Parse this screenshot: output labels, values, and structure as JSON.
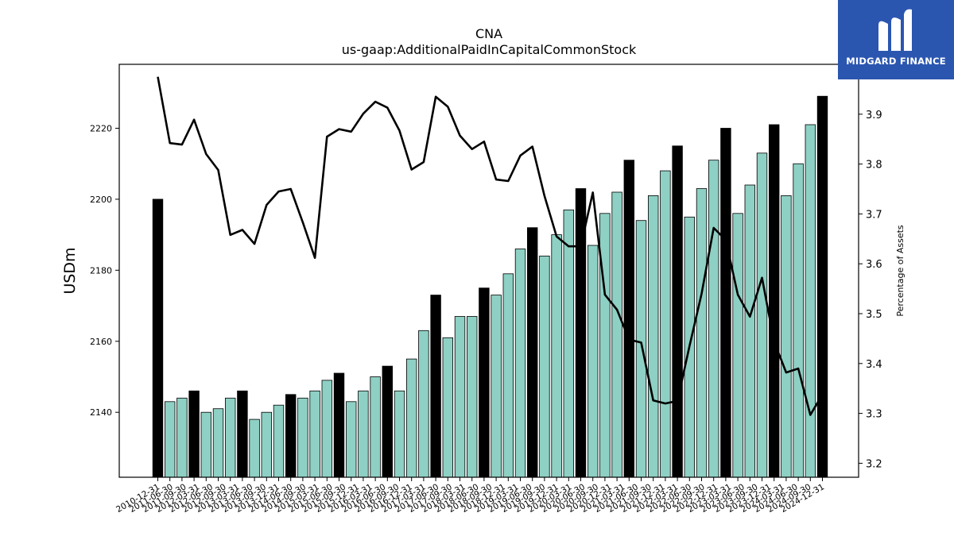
{
  "brand": {
    "name": "MIDGARD FINANCE",
    "bg_color": "#2b56b0",
    "icon": "midgard-m-logo-icon"
  },
  "chart_data": {
    "type": "bar",
    "title": "CNA",
    "subtitle": "us-gaap:AdditionalPaidInCapitalCommonStock",
    "ylabel": "USDm",
    "y2label": "Percentage of Assets",
    "ylim": [
      2121.7,
      2238
    ],
    "y2lim": [
      3.172,
      4.0
    ],
    "yticks": [
      2140,
      2160,
      2180,
      2200,
      2220
    ],
    "y2ticks": [
      3.2,
      3.3,
      3.4,
      3.5,
      3.6,
      3.7,
      3.8,
      3.9
    ],
    "bar_colors": {
      "year_end": "#000000",
      "quarter": "#8ed0c4"
    },
    "line_color": "#000000",
    "categories": [
      "2010-12-31",
      "2011-03-31",
      "2011-06-30",
      "2011-09-30",
      "2011-12-31",
      "2012-03-31",
      "2012-06-30",
      "2012-09-30",
      "2012-12-31",
      "2013-03-31",
      "2013-06-30",
      "2013-09-30",
      "2013-12-31",
      "2014-03-31",
      "2014-06-30",
      "2014-09-30",
      "2014-12-31",
      "2015-03-31",
      "2015-06-30",
      "2015-09-30",
      "2015-12-31",
      "2016-03-31",
      "2016-06-30",
      "2016-09-30",
      "2016-12-31",
      "2017-03-31",
      "2017-06-30",
      "2017-09-30",
      "2017-12-31",
      "2018-03-31",
      "2018-06-30",
      "2018-09-30",
      "2018-12-31",
      "2019-03-31",
      "2019-06-30",
      "2019-09-30",
      "2019-12-31",
      "2020-03-31",
      "2020-06-30",
      "2020-09-30",
      "2020-12-31",
      "2021-03-31",
      "2021-06-30",
      "2021-09-30",
      "2021-12-31",
      "2022-03-31",
      "2022-06-30",
      "2022-09-30",
      "2022-12-31",
      "2023-03-31",
      "2023-06-30",
      "2023-09-30",
      "2023-12-31",
      "2024-03-31",
      "2024-06-30",
      "2024-12-31"
    ],
    "tick_labels": [
      "2010-12-31",
      "2011-06-30",
      "2011-09-30",
      "2012-03-31",
      "2012-06-30",
      "2012-09-30",
      "2013-03-31",
      "2013-06-30",
      "2013-09-30",
      "2013-12-31",
      "2014-06-30",
      "2014-09-30",
      "2015-03-31",
      "2015-06-30",
      "2015-09-30",
      "2015-12-31",
      "2016-03-31",
      "2016-06-30",
      "2016-09-30",
      "2016-12-31",
      "2017-03-31",
      "2017-06-30",
      "2017-09-30",
      "2018-03-31",
      "2018-06-30",
      "2018-09-30",
      "2018-12-31",
      "2019-03-31",
      "2019-06-30",
      "2019-09-30",
      "2019-12-31",
      "2020-03-31",
      "2020-06-30",
      "2020-09-30",
      "2020-12-31",
      "2021-03-31",
      "2021-06-30",
      "2021-09-30",
      "2021-12-31",
      "2022-03-31",
      "2022-06-30",
      "2022-09-30",
      "2022-12-31",
      "2023-03-31",
      "2023-06-30",
      "2023-09-30",
      "2023-12-31",
      "2024-03-31",
      "2024-06-30",
      "2024-09-30",
      "2024-12-31"
    ],
    "series": [
      {
        "type": "bar",
        "values": [
          2200,
          2143,
          2144,
          2146,
          2140,
          2141,
          2144,
          2146,
          2138,
          2140,
          2142,
          2145,
          2144,
          2146,
          2149,
          2151,
          2143,
          2146,
          2150,
          2153,
          2146,
          2155,
          2163,
          2173,
          2161,
          2167,
          2167,
          2175,
          2173,
          2179,
          2186,
          2192,
          2184,
          2190,
          2197,
          2203,
          2187,
          2196,
          2202,
          2211,
          2194,
          2201,
          2208,
          2215,
          2195,
          2203,
          2211,
          2220,
          2196,
          2204,
          2213,
          2221,
          2201,
          2210,
          2221,
          2229
        ],
        "year_end": [
          true,
          false,
          false,
          true,
          false,
          false,
          false,
          true,
          false,
          false,
          false,
          true,
          false,
          false,
          false,
          true,
          false,
          false,
          false,
          true,
          false,
          false,
          false,
          true,
          false,
          false,
          false,
          true,
          false,
          false,
          false,
          true,
          false,
          false,
          false,
          true,
          false,
          false,
          false,
          true,
          false,
          false,
          false,
          true,
          false,
          false,
          false,
          true,
          false,
          false,
          false,
          true,
          false,
          false,
          false,
          true
        ]
      },
      {
        "type": "line",
        "axis": "right",
        "values": [
          3.975,
          3.842,
          3.839,
          3.889,
          3.82,
          3.788,
          3.658,
          3.668,
          3.64,
          3.718,
          3.745,
          3.75,
          3.683,
          3.612,
          3.855,
          3.87,
          3.865,
          3.901,
          3.925,
          3.913,
          3.867,
          3.789,
          3.804,
          3.935,
          3.915,
          3.857,
          3.83,
          3.845,
          3.769,
          3.766,
          3.817,
          3.835,
          3.736,
          3.655,
          3.635,
          3.635,
          3.743,
          3.538,
          3.508,
          3.448,
          3.442,
          3.326,
          3.32,
          3.325,
          3.435,
          3.54,
          3.672,
          3.648,
          3.538,
          3.494,
          3.572,
          3.444,
          3.382,
          3.39,
          3.297,
          3.338
        ]
      }
    ]
  }
}
